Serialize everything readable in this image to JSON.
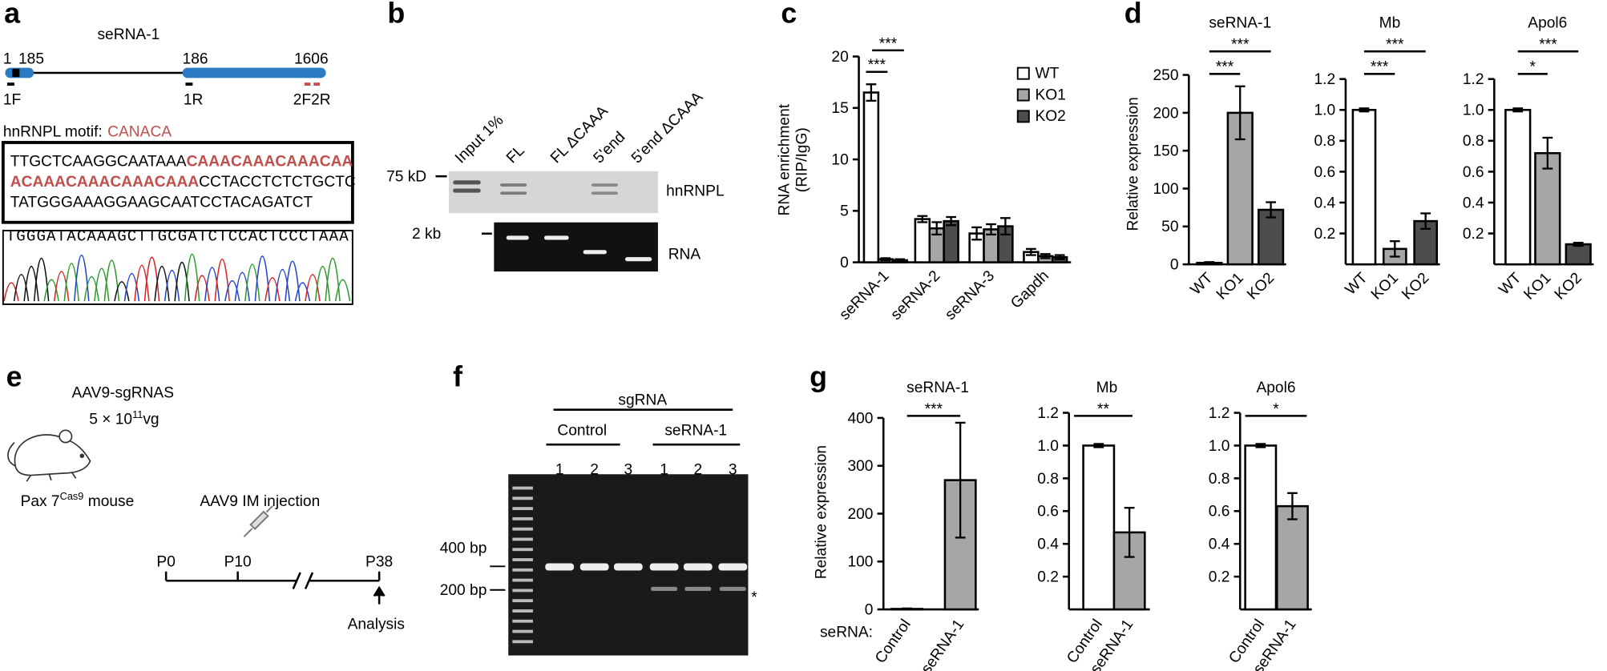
{
  "panel_labels": [
    "a",
    "b",
    "c",
    "d",
    "e",
    "f",
    "g"
  ],
  "panel_a": {
    "gene": "seRNA-1",
    "positions": [
      1,
      185,
      186,
      1606
    ],
    "primers": [
      "1F",
      "1R",
      "2F2R"
    ],
    "motif_label": "hnRNPL motif:",
    "motif": "CANACA",
    "sequence": [
      [
        {
          "text": "TTGCTCAAGGCAATAAA",
          "highlight": false
        },
        {
          "text": "CAAACAAACAAACAA",
          "highlight": true
        }
      ],
      [
        {
          "text": "ACAAACAAACAAACAAA",
          "highlight": true
        },
        {
          "text": "CCTACCTCTCTGCTC",
          "highlight": false
        }
      ],
      [
        {
          "text": "TATGGGAAAGGAAGCAATCCTACAGATCT",
          "highlight": false
        }
      ]
    ],
    "chromatogram": "TGGGATACAAAGCTTGCGATCTCCACTCCCTAAA"
  },
  "panel_b": {
    "lanes": [
      "Input 1%",
      "FL",
      "FL ΔCAAA",
      "5'end",
      "5'end ΔCAAA"
    ],
    "markers": [
      "75 kD",
      "2 kb"
    ],
    "blots": [
      "hnRNPL",
      "RNA"
    ]
  },
  "panel_e": {
    "vector": "AAV9-sgRNAS",
    "dose": {
      "base": "5 × 10",
      "exponent": "11",
      "unit": "vg"
    },
    "mouse": {
      "name": "Pax 7",
      "superscript": "Cas9",
      "suffix": " mouse"
    },
    "injection": "AAV9 IM injection",
    "timepoints": [
      "P0",
      "P10",
      "P38"
    ],
    "endpoint": "Analysis"
  },
  "panel_f": {
    "header": "sgRNA",
    "groups": [
      "Control",
      "seRNA-1"
    ],
    "lanes": [
      "1",
      "2",
      "3",
      "1",
      "2",
      "3"
    ],
    "markers": [
      "400 bp",
      "200 bp"
    ],
    "asterisk": "*"
  },
  "chart_data": [
    {
      "type": "bar",
      "ylabel": [
        "RNA enrichment",
        "(RIP/IgG)"
      ],
      "categories": [
        "seRNA-1",
        "seRNA-2",
        "seRNA-3",
        "Gapdh"
      ],
      "series": [
        {
          "name": "WT",
          "color": "#ffffff",
          "values": [
            16.5,
            4.2,
            2.8,
            1.0
          ],
          "errors": [
            0.8,
            0.3,
            0.6,
            0.3
          ]
        },
        {
          "name": "KO1",
          "color": "#a6a6a6",
          "values": [
            0.3,
            3.3,
            3.2,
            0.6
          ],
          "errors": [
            0.1,
            0.6,
            0.5,
            0.2
          ]
        },
        {
          "name": "KO2",
          "color": "#4d4d4d",
          "values": [
            0.2,
            4.0,
            3.5,
            0.5
          ],
          "errors": [
            0.1,
            0.4,
            0.8,
            0.2
          ]
        }
      ],
      "ylim": [
        0,
        20
      ],
      "yticks": [
        0,
        5,
        10,
        15,
        20
      ],
      "significance": [
        "***",
        "***"
      ]
    },
    {
      "type": "bar",
      "title": "seRNA-1",
      "ylabel": "Relative expression",
      "categories": [
        "WT",
        "KO1",
        "KO2"
      ],
      "values": [
        2,
        200,
        72
      ],
      "errors": [
        1,
        35,
        10
      ],
      "colors": [
        "#ffffff",
        "#a6a6a6",
        "#4d4d4d"
      ],
      "ylim": [
        0,
        250
      ],
      "yticks": [
        0,
        50,
        100,
        150,
        200,
        250
      ],
      "significance": [
        "***",
        "***"
      ]
    },
    {
      "type": "bar",
      "title": "Mb",
      "categories": [
        "WT",
        "KO1",
        "KO2"
      ],
      "values": [
        1.0,
        0.1,
        0.28
      ],
      "errors": [
        0.01,
        0.05,
        0.05
      ],
      "colors": [
        "#ffffff",
        "#a6a6a6",
        "#4d4d4d"
      ],
      "ylim": [
        0,
        1.2
      ],
      "yticks": [
        0.2,
        0.4,
        0.6,
        0.8,
        {
          "value": 1,
          "label": "1.0"
        },
        1.2
      ],
      "significance": [
        "***",
        "***"
      ]
    },
    {
      "type": "bar",
      "title": "Apol6",
      "categories": [
        "WT",
        "KO1",
        "KO2"
      ],
      "values": [
        1.0,
        0.72,
        0.13
      ],
      "errors": [
        0.01,
        0.1,
        0.01
      ],
      "colors": [
        "#ffffff",
        "#a6a6a6",
        "#4d4d4d"
      ],
      "ylim": [
        0,
        1.2
      ],
      "yticks": [
        0.2,
        0.4,
        0.6,
        0.8,
        {
          "value": 1,
          "label": "1.0"
        },
        1.2
      ],
      "significance": [
        "***",
        "*"
      ]
    },
    {
      "type": "bar",
      "title": "seRNA-1",
      "ylabel": "Relative expression",
      "row_label": "seRNA:",
      "categories": [
        "Control",
        "seRNA-1"
      ],
      "values": [
        1,
        270
      ],
      "errors": [
        1,
        120
      ],
      "colors": [
        "#ffffff",
        "#a6a6a6"
      ],
      "ylim": [
        0,
        400
      ],
      "yticks": [
        0,
        100,
        200,
        300,
        400
      ],
      "significance": [
        "***"
      ]
    },
    {
      "type": "bar",
      "title": "Mb",
      "categories": [
        "Control",
        "seRNA-1"
      ],
      "values": [
        1.0,
        0.47
      ],
      "errors": [
        0.01,
        0.15
      ],
      "colors": [
        "#ffffff",
        "#a6a6a6"
      ],
      "ylim": [
        0,
        1.2
      ],
      "yticks": [
        0.2,
        0.4,
        0.6,
        0.8,
        {
          "value": 1,
          "label": "1.0"
        },
        1.2
      ],
      "significance": [
        "**"
      ]
    },
    {
      "type": "bar",
      "title": "Apol6",
      "categories": [
        "Control",
        "seRNA-1"
      ],
      "values": [
        1.0,
        0.63
      ],
      "errors": [
        0.01,
        0.08
      ],
      "colors": [
        "#ffffff",
        "#a6a6a6"
      ],
      "ylim": [
        0,
        1.2
      ],
      "yticks": [
        0.2,
        0.4,
        0.6,
        0.8,
        {
          "value": 1,
          "label": "1.0"
        },
        1.2
      ],
      "significance": [
        "*"
      ]
    }
  ]
}
